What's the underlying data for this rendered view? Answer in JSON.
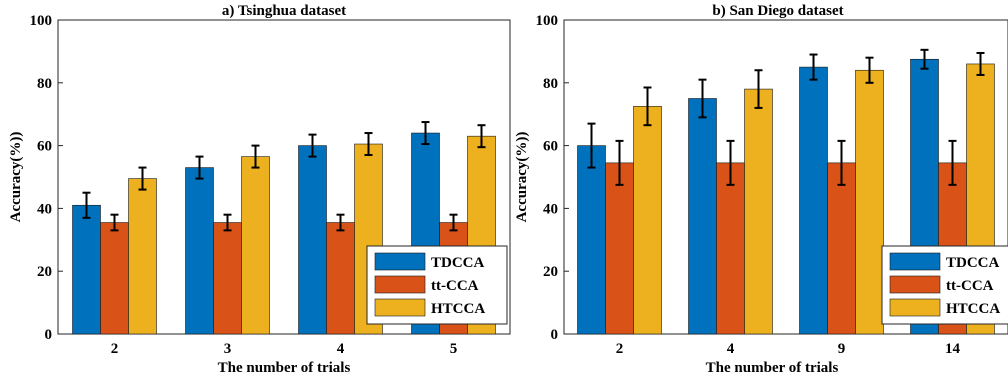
{
  "colors": {
    "TDCCA": "#0072BD",
    "tt-CCA": "#D95319",
    "HTCCA": "#EDB120"
  },
  "chart_data": [
    {
      "type": "bar",
      "title": "a) Tsinghua dataset",
      "xlabel": "The number of trials",
      "ylabel": "Accuracy(%))",
      "ylim": [
        0,
        100
      ],
      "yticks": [
        0,
        20,
        40,
        60,
        80,
        100
      ],
      "categories": [
        "2",
        "3",
        "4",
        "5"
      ],
      "legend_position": "bottom-right",
      "grid": false,
      "series": [
        {
          "name": "TDCCA",
          "values": [
            41,
            53,
            60,
            64
          ],
          "errors": [
            4,
            3.5,
            3.5,
            3.5
          ]
        },
        {
          "name": "tt-CCA",
          "values": [
            35.5,
            35.5,
            35.5,
            35.5
          ],
          "errors": [
            2.5,
            2.5,
            2.5,
            2.5
          ]
        },
        {
          "name": "HTCCA",
          "values": [
            49.5,
            56.5,
            60.5,
            63
          ],
          "errors": [
            3.5,
            3.5,
            3.5,
            3.5
          ]
        }
      ]
    },
    {
      "type": "bar",
      "title": "b) San Diego dataset",
      "xlabel": "The number of trials",
      "ylabel": "Accuracy(%))",
      "ylim": [
        0,
        100
      ],
      "yticks": [
        0,
        20,
        40,
        60,
        80,
        100
      ],
      "categories": [
        "2",
        "4",
        "9",
        "14"
      ],
      "legend_position": "bottom-right",
      "grid": false,
      "series": [
        {
          "name": "TDCCA",
          "values": [
            60,
            75,
            85,
            87.5
          ],
          "errors": [
            7,
            6,
            4,
            3
          ]
        },
        {
          "name": "tt-CCA",
          "values": [
            54.5,
            54.5,
            54.5,
            54.5
          ],
          "errors": [
            7,
            7,
            7,
            7
          ]
        },
        {
          "name": "HTCCA",
          "values": [
            72.5,
            78,
            84,
            86
          ],
          "errors": [
            6,
            6,
            4,
            3.5
          ]
        }
      ]
    }
  ]
}
